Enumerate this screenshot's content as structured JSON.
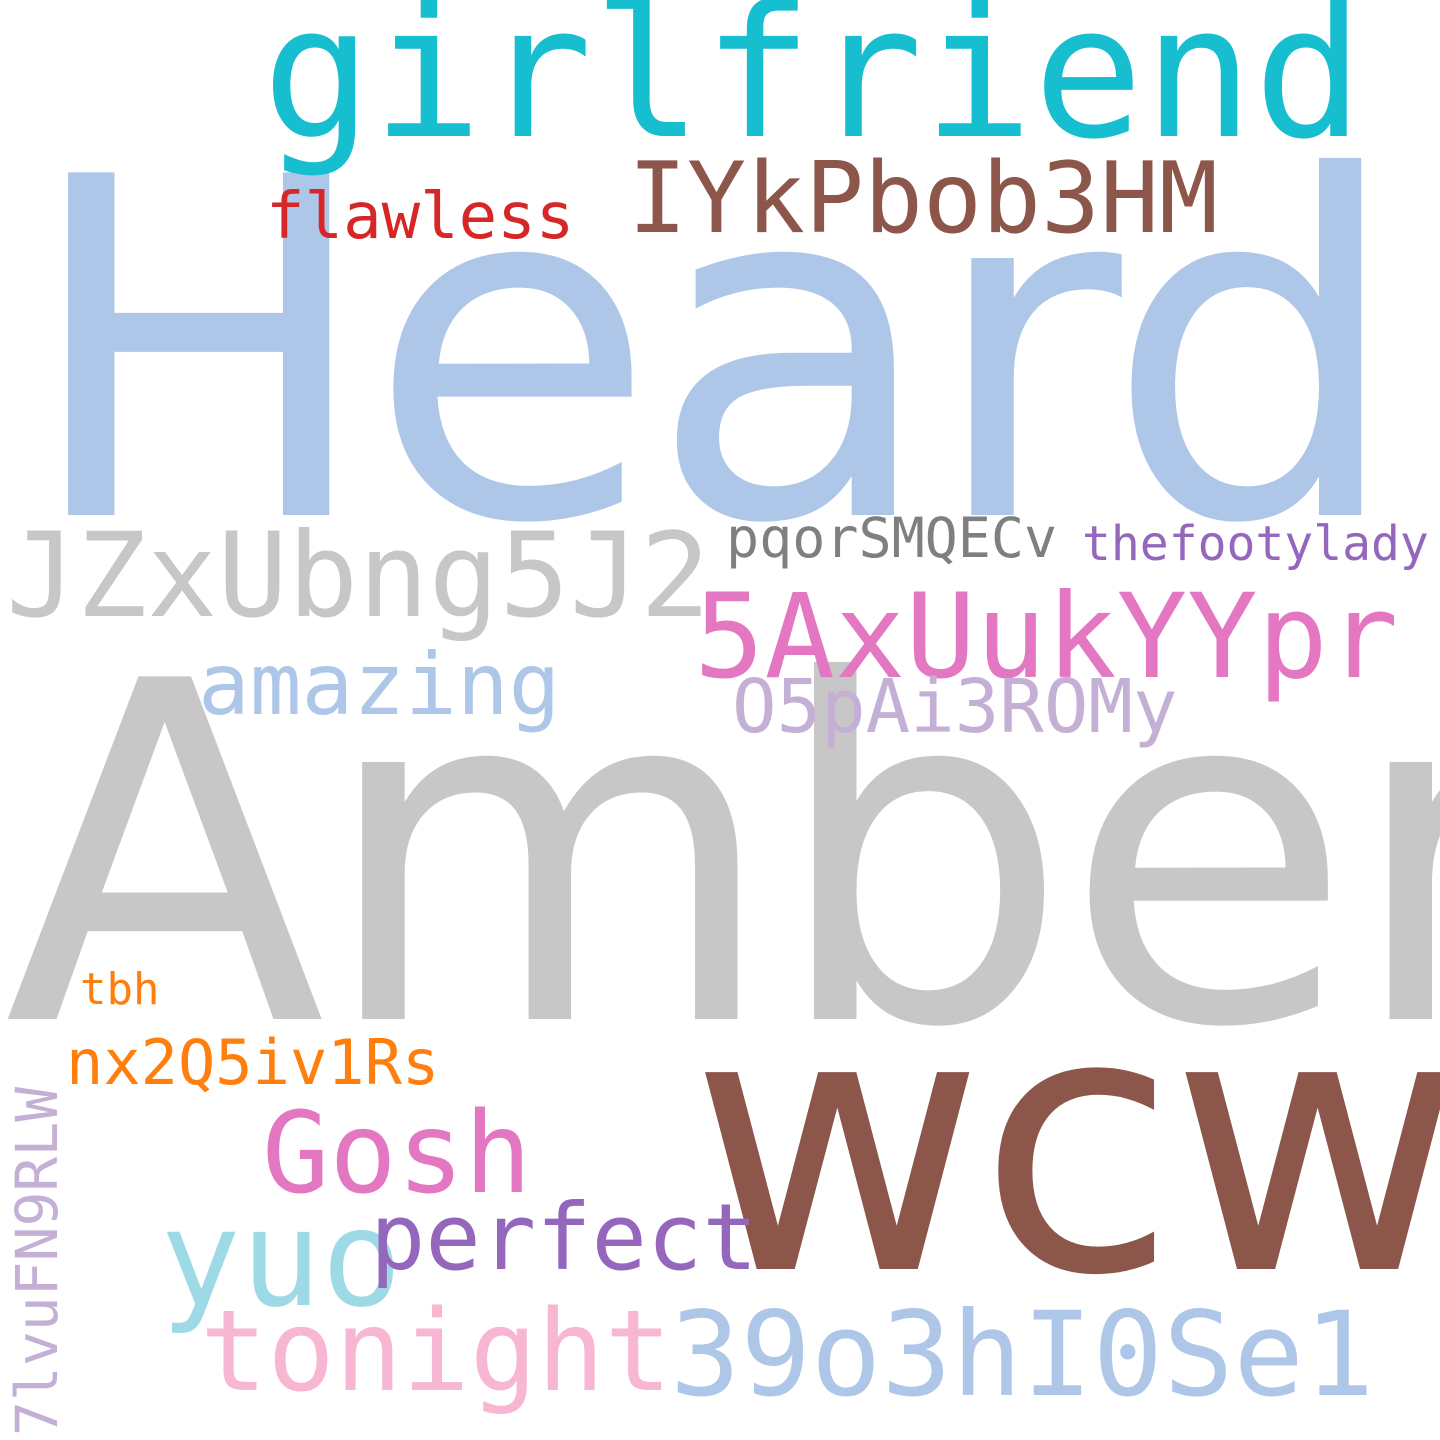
{
  "words": [
    {
      "key": "heard",
      "text": "Heard",
      "color": "#aec7e8"
    },
    {
      "key": "amber",
      "text": "Amber",
      "color": "#c7c7c7"
    },
    {
      "key": "wcw",
      "text": "wcw",
      "color": "#8c564b"
    },
    {
      "key": "girlfriend",
      "text": "girlfriend",
      "color": "#17becf"
    },
    {
      "key": "iykpbob3hm",
      "text": "IYkPbob3HM",
      "color": "#8c564b"
    },
    {
      "key": "flawless",
      "text": "flawless",
      "color": "#d62728"
    },
    {
      "key": "jzxubng5j2",
      "text": "JZxUbng5J2",
      "color": "#c7c7c7"
    },
    {
      "key": "pqorsmqecv",
      "text": "pqorSMQECv",
      "color": "#7f7f7f"
    },
    {
      "key": "thefootylady",
      "text": "thefootylady",
      "color": "#9467bd"
    },
    {
      "key": "5axuukyypr",
      "text": "5AxUukYYpr",
      "color": "#e377c2"
    },
    {
      "key": "amazing",
      "text": "amazing",
      "color": "#aec7e8"
    },
    {
      "key": "o5pai3romy",
      "text": "O5pAi3ROMy",
      "color": "#c5b0d5"
    },
    {
      "key": "tbh",
      "text": "tbh",
      "color": "#ff7f0e"
    },
    {
      "key": "nx2q5iv1rs",
      "text": "nx2Q5iv1Rs",
      "color": "#ff7f0e"
    },
    {
      "key": "gosh",
      "text": "Gosh",
      "color": "#e377c2"
    },
    {
      "key": "yuo",
      "text": "yuo",
      "color": "#9edae5"
    },
    {
      "key": "perfect",
      "text": "perfect",
      "color": "#9467bd"
    },
    {
      "key": "tonight",
      "text": "tonight",
      "color": "#f7b6d2"
    },
    {
      "key": "39o3hi0se1",
      "text": "39o3hI0Se1",
      "color": "#aec7e8"
    },
    {
      "key": "7lvufn9rlw",
      "text": "7lvuFN9RLW",
      "color": "#c5b0d5"
    }
  ]
}
